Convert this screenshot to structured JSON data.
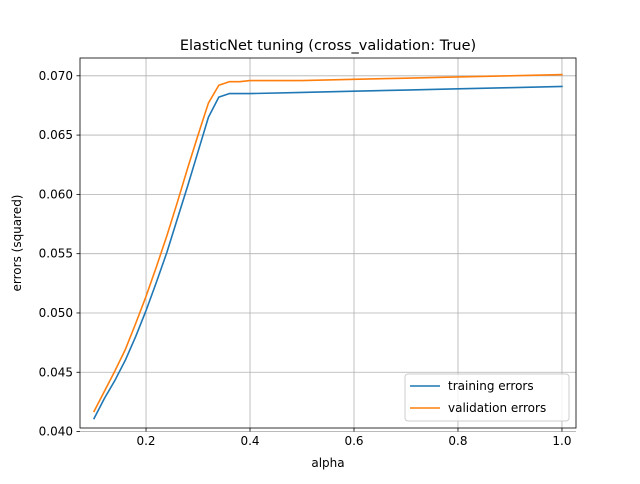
{
  "chart_data": {
    "type": "line",
    "title": "ElasticNet tuning (cross_validation: True)",
    "xlabel": "alpha",
    "ylabel": "errors (squared)",
    "xlim": [
      0.073,
      1.027
    ],
    "ylim": [
      0.0403,
      0.0715
    ],
    "xticks": [
      0.2,
      0.4,
      0.6,
      0.8,
      1.0
    ],
    "xtick_labels": [
      "0.2",
      "0.4",
      "0.6",
      "0.8",
      "1.0"
    ],
    "yticks": [
      0.04,
      0.045,
      0.05,
      0.055,
      0.06,
      0.065,
      0.07
    ],
    "ytick_labels": [
      "0.040",
      "0.045",
      "0.050",
      "0.055",
      "0.060",
      "0.065",
      "0.070"
    ],
    "grid": true,
    "legend_position": "lower-right",
    "series": [
      {
        "name": "training errors",
        "color": "#1f77b4",
        "x": [
          0.1,
          0.12,
          0.14,
          0.16,
          0.18,
          0.2,
          0.22,
          0.24,
          0.26,
          0.28,
          0.3,
          0.32,
          0.34,
          0.36,
          0.38,
          0.4,
          0.5,
          0.6,
          0.7,
          0.8,
          0.9,
          1.0
        ],
        "y": [
          0.0411,
          0.0428,
          0.0443,
          0.046,
          0.048,
          0.0502,
          0.0526,
          0.0551,
          0.0579,
          0.0607,
          0.0636,
          0.0665,
          0.0682,
          0.0685,
          0.0685,
          0.0685,
          0.0686,
          0.0687,
          0.0688,
          0.0689,
          0.069,
          0.0691
        ]
      },
      {
        "name": "validation errors",
        "color": "#ff7f0e",
        "x": [
          0.1,
          0.12,
          0.14,
          0.16,
          0.18,
          0.2,
          0.22,
          0.24,
          0.26,
          0.28,
          0.3,
          0.32,
          0.34,
          0.36,
          0.38,
          0.4,
          0.5,
          0.6,
          0.7,
          0.8,
          0.9,
          1.0
        ],
        "y": [
          0.0417,
          0.0434,
          0.0451,
          0.0469,
          0.0491,
          0.0514,
          0.0539,
          0.0565,
          0.0593,
          0.0622,
          0.065,
          0.0677,
          0.0692,
          0.0695,
          0.0695,
          0.0696,
          0.0696,
          0.0697,
          0.0698,
          0.0699,
          0.07,
          0.0701
        ]
      }
    ]
  }
}
